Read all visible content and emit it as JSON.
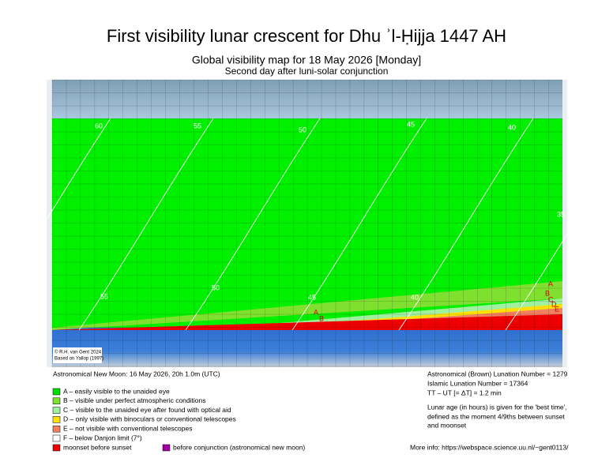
{
  "header": {
    "title": "First visibility lunar crescent for Dhu ʾl-Ḥijja 1447 AH",
    "subtitle": "Global visibility map for 18 May 2026 [Monday]",
    "note": "Second day after luni-solar conjunction"
  },
  "map": {
    "credit": [
      "© R.H. van Gent 2024",
      "Based on Yallop (1997)"
    ],
    "contour_labels": [
      "60",
      "55",
      "50",
      "45",
      "40",
      "35",
      "55",
      "50",
      "45",
      "40"
    ],
    "zone_labels": [
      "A",
      "B",
      "A",
      "B",
      "C",
      "D",
      "E"
    ]
  },
  "info_left": {
    "new_moon": "Astronomical New Moon: 16 May 2026, 20h 1.0m (UTC)",
    "legend": [
      {
        "color": "#00e000",
        "label": "A – easily visible to the unaided eye"
      },
      {
        "color": "#80e030",
        "label": "B – visible under perfect atmospheric conditions"
      },
      {
        "color": "#a0f0a0",
        "label": "C – visible to the unaided eye after found with optical aid"
      },
      {
        "color": "#ffe000",
        "label": "D – only visible with binoculars or conventional telescopes"
      },
      {
        "color": "#f08060",
        "label": "E – not visible with conventional telescopes"
      },
      {
        "color": "#ffffff",
        "label": "F – below Danjon limit (7°)"
      }
    ],
    "moonset": {
      "color": "#ee0000",
      "label": "moonset before sunset"
    },
    "conjunction": {
      "color": "#a000a0",
      "label": "before conjunction (astronomical new moon)"
    }
  },
  "info_right": {
    "lines": [
      "Astronomical (Brown) Lunation Number = 1279",
      "Islamic Lunation Number = 17364",
      "TT – UT [= ΔT] = 1.2 min"
    ],
    "notes": [
      "Lunar age (in hours) is given for the 'best time',",
      "defined as the moment 4/9ths between sunset",
      "and moonset"
    ],
    "more_info": "More info: https://webspace.science.uu.nl/~gent0113/"
  }
}
